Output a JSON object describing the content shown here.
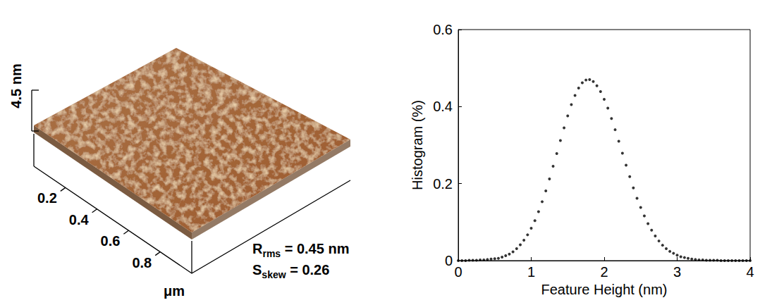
{
  "chart_data": [
    {
      "type": "surface",
      "color": "#9c5a2a",
      "z_label": "4.5 nm",
      "x_label": "μm",
      "xlim": [
        0,
        1
      ],
      "xticks": [
        0.2,
        0.4,
        0.6,
        0.8
      ],
      "annotations": [
        {
          "main": "R",
          "sub": "rms",
          "rest": " = 0.45 nm"
        },
        {
          "main": "S",
          "sub": "skew",
          "rest": " = 0.26"
        }
      ]
    },
    {
      "type": "scatter",
      "color": "#000000",
      "marker": "circle",
      "grid": false,
      "x_label": "Feature Height (nm)",
      "y_label": "Histogram (%)",
      "xlim": [
        0,
        4
      ],
      "ylim": [
        0,
        0.6
      ],
      "xticks": [
        0,
        1,
        2,
        3,
        4
      ],
      "yticks": [
        0,
        0.2,
        0.4,
        0.6
      ],
      "x": [
        0,
        0.05,
        0.1,
        0.15,
        0.2,
        0.25,
        0.3,
        0.35,
        0.4,
        0.45,
        0.5,
        0.55,
        0.6,
        0.65,
        0.7,
        0.75,
        0.8,
        0.85,
        0.9,
        0.95,
        1.0,
        1.05,
        1.1,
        1.15,
        1.2,
        1.25,
        1.3,
        1.35,
        1.4,
        1.45,
        1.5,
        1.55,
        1.6,
        1.65,
        1.7,
        1.75,
        1.8,
        1.85,
        1.9,
        1.95,
        2.0,
        2.05,
        2.1,
        2.15,
        2.2,
        2.25,
        2.3,
        2.35,
        2.4,
        2.45,
        2.5,
        2.55,
        2.6,
        2.65,
        2.7,
        2.75,
        2.8,
        2.85,
        2.9,
        2.95,
        3.0,
        3.05,
        3.1,
        3.15,
        3.2,
        3.25,
        3.3,
        3.35,
        3.4,
        3.45,
        3.5,
        3.55,
        3.6,
        3.65,
        3.7,
        3.75,
        3.8,
        3.85,
        3.9,
        3.95,
        4.0
      ],
      "values": [
        0,
        0,
        0,
        0.001,
        0.001,
        0.001,
        0.002,
        0.002,
        0.003,
        0.004,
        0.005,
        0.006,
        0.009,
        0.013,
        0.017,
        0.023,
        0.031,
        0.041,
        0.053,
        0.067,
        0.084,
        0.104,
        0.127,
        0.153,
        0.181,
        0.212,
        0.245,
        0.278,
        0.312,
        0.345,
        0.376,
        0.405,
        0.429,
        0.448,
        0.462,
        0.469,
        0.47,
        0.465,
        0.454,
        0.439,
        0.419,
        0.396,
        0.369,
        0.34,
        0.31,
        0.279,
        0.248,
        0.218,
        0.189,
        0.162,
        0.138,
        0.116,
        0.096,
        0.079,
        0.064,
        0.051,
        0.04,
        0.031,
        0.024,
        0.019,
        0.014,
        0.01,
        0.008,
        0.006,
        0.004,
        0.003,
        0.002,
        0.002,
        0.001,
        0.001,
        0.001,
        0.001,
        0,
        0,
        0,
        0,
        0,
        0,
        0,
        0,
        0
      ]
    }
  ]
}
